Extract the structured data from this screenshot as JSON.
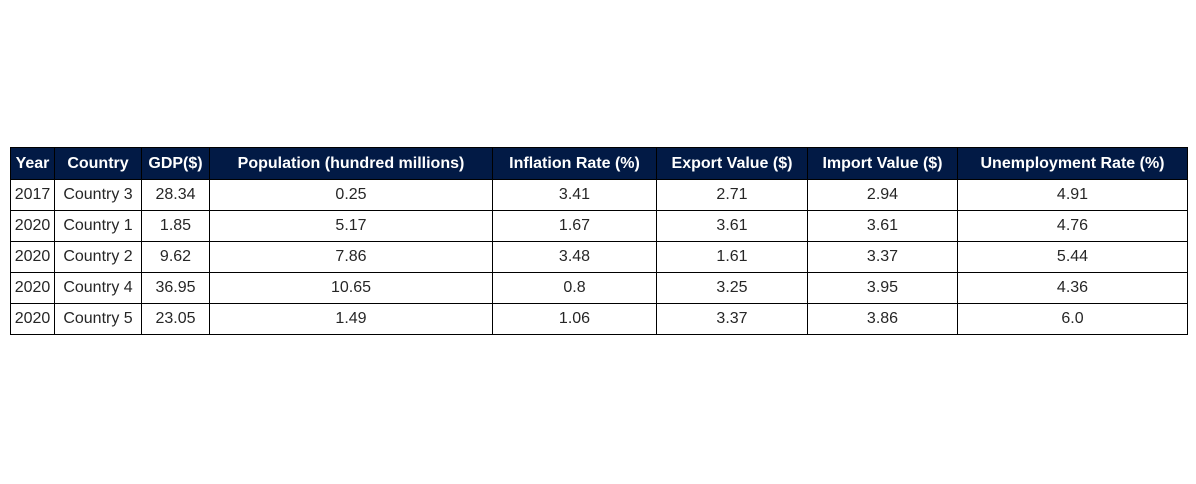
{
  "chart_data": {
    "type": "table",
    "columns": [
      "Year",
      "Country",
      "GDP($)",
      "Population (hundred millions)",
      "Inflation Rate (%)",
      "Export Value ($)",
      "Import Value ($)",
      "Unemployment Rate (%)"
    ],
    "rows": [
      [
        "2017",
        "Country 3",
        "28.34",
        "0.25",
        "3.41",
        "2.71",
        "2.94",
        "4.91"
      ],
      [
        "2020",
        "Country 1",
        "1.85",
        "5.17",
        "1.67",
        "3.61",
        "3.61",
        "4.76"
      ],
      [
        "2020",
        "Country 2",
        "9.62",
        "7.86",
        "3.48",
        "1.61",
        "3.37",
        "5.44"
      ],
      [
        "2020",
        "Country 4",
        "36.95",
        "10.65",
        "0.8",
        "3.25",
        "3.95",
        "4.36"
      ],
      [
        "2020",
        "Country 5",
        "23.05",
        "1.49",
        "1.06",
        "3.37",
        "3.86",
        "6.0"
      ]
    ],
    "header_color": "#021a45",
    "header_text_color": "#ffffff"
  }
}
